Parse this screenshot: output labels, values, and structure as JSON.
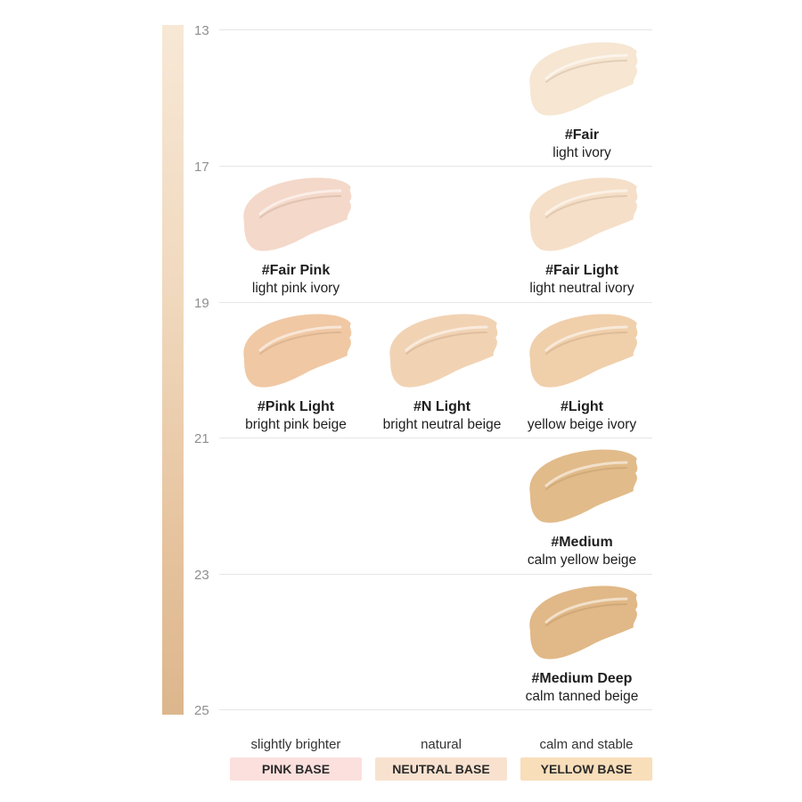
{
  "scale": {
    "ticks": [
      "13",
      "17",
      "19",
      "21",
      "23",
      "25"
    ],
    "gradient_colors": [
      "#f7e8d6",
      "#dcb68d"
    ]
  },
  "shades": [
    {
      "name": "#Fair",
      "desc": "light ivory",
      "level": "13-17",
      "base": "yellow",
      "color": "#f6e6d2"
    },
    {
      "name": "#Fair Pink",
      "desc": "light pink ivory",
      "level": "17-19",
      "base": "pink",
      "color": "#f4d8c9"
    },
    {
      "name": "#Fair Light",
      "desc": "light neutral ivory",
      "level": "17-19",
      "base": "yellow",
      "color": "#f5dfc8"
    },
    {
      "name": "#Pink Light",
      "desc": "bright pink beige",
      "level": "19-21",
      "base": "pink",
      "color": "#f0c8a4"
    },
    {
      "name": "#N Light",
      "desc": "bright neutral beige",
      "level": "19-21",
      "base": "neutral",
      "color": "#f1d3b4"
    },
    {
      "name": "#Light",
      "desc": "yellow beige ivory",
      "level": "19-21",
      "base": "yellow",
      "color": "#f0cfab"
    },
    {
      "name": "#Medium",
      "desc": "calm yellow beige",
      "level": "21-23",
      "base": "yellow",
      "color": "#e2bb8a"
    },
    {
      "name": "#Medium Deep",
      "desc": "calm tanned beige",
      "level": "23-25",
      "base": "yellow",
      "color": "#e1b887"
    }
  ],
  "bases": [
    {
      "caption": "slightly brighter",
      "label": "PINK BASE",
      "color": "#fbe0dd"
    },
    {
      "caption": "natural",
      "label": "NEUTRAL BASE",
      "color": "#f8e2cf"
    },
    {
      "caption": "calm and stable",
      "label": "YELLOW BASE",
      "color": "#f9deba"
    }
  ]
}
